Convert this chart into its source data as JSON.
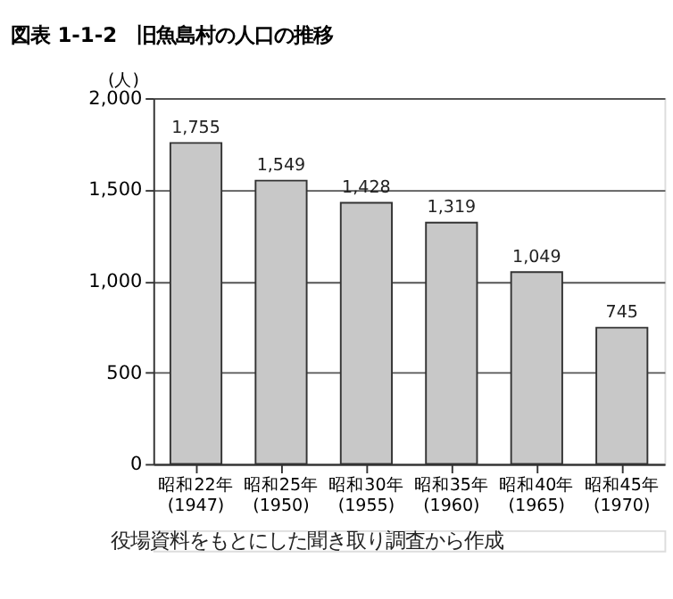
{
  "chart_data": {
    "type": "bar",
    "title": "図表 1-1-2　旧魚島村の人口の推移",
    "ylabel": "(人)",
    "categories": [
      "昭和22年\n(1947)",
      "昭和25年\n(1950)",
      "昭和30年\n(1955)",
      "昭和35年\n(1960)",
      "昭和40年\n(1965)",
      "昭和45年\n(1970)"
    ],
    "values": [
      1755,
      1549,
      1428,
      1319,
      1049,
      745
    ],
    "color": "#c8c8c8",
    "value_labels": [
      "1,755",
      "1,549",
      "1,428",
      "1,319",
      "1,049",
      "745"
    ],
    "ylim": [
      0,
      2000
    ],
    "yticks": [
      0,
      {
        "value": 500,
        "label": "500"
      },
      {
        "value": 1000,
        "label": "1,000"
      },
      {
        "value": 1500,
        "label": "1,500"
      },
      {
        "value": 2000,
        "label": "2,000"
      }
    ],
    "grid": "y",
    "annotations": [
      "役場資料をもとにした聞き取り調査から作成"
    ]
  }
}
